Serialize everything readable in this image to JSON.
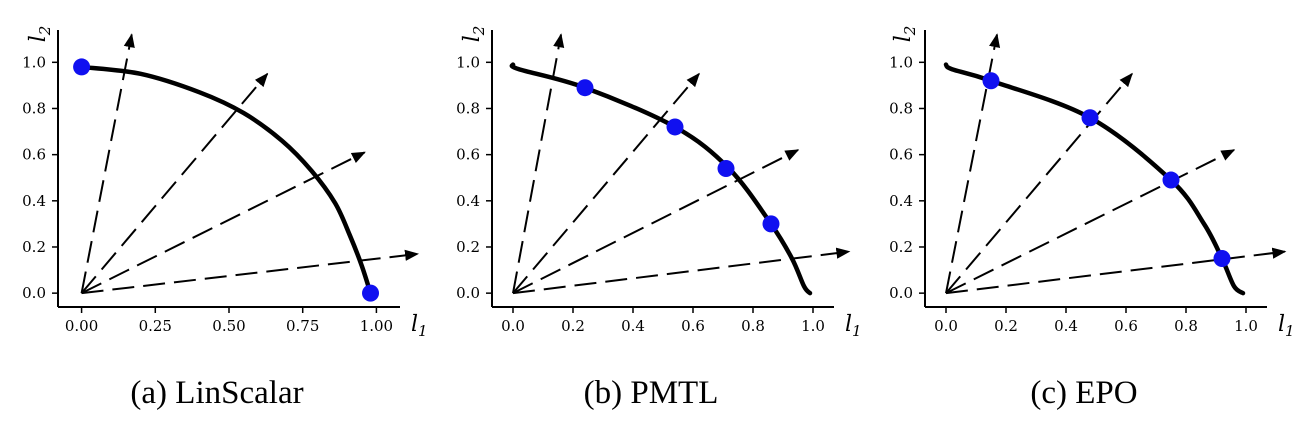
{
  "chart_data": [
    {
      "type": "scatter",
      "caption": "(a) LinScalar",
      "xlabel": "l",
      "xlabel_sub": "1",
      "ylabel": "l",
      "ylabel_sub": "2",
      "xlim": [
        -0.08,
        1.08
      ],
      "ylim": [
        -0.06,
        1.14
      ],
      "xticks": [
        "0.00",
        "0.25",
        "0.50",
        "0.75",
        "1.00"
      ],
      "xtick_values": [
        0,
        0.25,
        0.5,
        0.75,
        1.0
      ],
      "yticks": [
        "0.0",
        "0.2",
        "0.4",
        "0.6",
        "0.8",
        "1.0"
      ],
      "ytick_values": [
        0,
        0.2,
        0.4,
        0.6,
        0.8,
        1.0
      ],
      "pareto_front": {
        "x": [
          0.0,
          0.2,
          0.4,
          0.55,
          0.68,
          0.78,
          0.86,
          0.91,
          0.95,
          0.98
        ],
        "y": [
          0.98,
          0.95,
          0.87,
          0.78,
          0.66,
          0.53,
          0.39,
          0.25,
          0.12,
          0.0
        ]
      },
      "preference_rays": [
        {
          "x": 0.17,
          "y": 1.12
        },
        {
          "x": 0.63,
          "y": 0.95
        },
        {
          "x": 0.96,
          "y": 0.61
        },
        {
          "x": 1.14,
          "y": 0.17
        }
      ],
      "points": {
        "x": [
          0.0,
          0.98
        ],
        "y": [
          0.98,
          0.0
        ]
      },
      "point_color": "#1010f0",
      "grid": false
    },
    {
      "type": "scatter",
      "caption": "(b) PMTL",
      "xlabel": "l",
      "xlabel_sub": "1",
      "ylabel": "l",
      "ylabel_sub": "2",
      "xlim": [
        -0.07,
        1.07
      ],
      "ylim": [
        -0.06,
        1.14
      ],
      "xticks": [
        "0.0",
        "0.2",
        "0.4",
        "0.6",
        "0.8",
        "1.0"
      ],
      "xtick_values": [
        0,
        0.2,
        0.4,
        0.6,
        0.8,
        1.0
      ],
      "yticks": [
        "0.0",
        "0.2",
        "0.4",
        "0.6",
        "0.8",
        "1.0"
      ],
      "ytick_values": [
        0,
        0.2,
        0.4,
        0.6,
        0.8,
        1.0
      ],
      "pareto_front": {
        "x": [
          0.0,
          0.02,
          0.24,
          0.54,
          0.72,
          0.86,
          0.93,
          0.97,
          0.99
        ],
        "y": [
          0.99,
          0.97,
          0.89,
          0.72,
          0.54,
          0.3,
          0.15,
          0.03,
          0.0
        ]
      },
      "preference_rays": [
        {
          "x": 0.16,
          "y": 1.12
        },
        {
          "x": 0.62,
          "y": 0.95
        },
        {
          "x": 0.95,
          "y": 0.62
        },
        {
          "x": 1.12,
          "y": 0.18
        }
      ],
      "points": {
        "x": [
          0.24,
          0.54,
          0.71,
          0.86
        ],
        "y": [
          0.89,
          0.72,
          0.54,
          0.3
        ]
      },
      "point_color": "#1010f0",
      "grid": false
    },
    {
      "type": "scatter",
      "caption": "(c) EPO",
      "xlabel": "l",
      "xlabel_sub": "1",
      "ylabel": "l",
      "ylabel_sub": "2",
      "xlim": [
        -0.07,
        1.07
      ],
      "ylim": [
        -0.06,
        1.14
      ],
      "xticks": [
        "0.0",
        "0.2",
        "0.4",
        "0.6",
        "0.8",
        "1.0"
      ],
      "xtick_values": [
        0,
        0.2,
        0.4,
        0.6,
        0.8,
        1.0
      ],
      "yticks": [
        "0.0",
        "0.2",
        "0.4",
        "0.6",
        "0.8",
        "1.0"
      ],
      "ytick_values": [
        0,
        0.2,
        0.4,
        0.6,
        0.8,
        1.0
      ],
      "pareto_front": {
        "x": [
          0.0,
          0.02,
          0.15,
          0.48,
          0.75,
          0.86,
          0.92,
          0.96,
          0.99
        ],
        "y": [
          0.99,
          0.97,
          0.92,
          0.76,
          0.49,
          0.3,
          0.15,
          0.03,
          0.0
        ]
      },
      "preference_rays": [
        {
          "x": 0.17,
          "y": 1.12
        },
        {
          "x": 0.62,
          "y": 0.95
        },
        {
          "x": 0.96,
          "y": 0.62
        },
        {
          "x": 1.13,
          "y": 0.18
        }
      ],
      "points": {
        "x": [
          0.15,
          0.48,
          0.75,
          0.92
        ],
        "y": [
          0.92,
          0.76,
          0.49,
          0.15
        ]
      },
      "point_color": "#1010f0",
      "grid": false
    }
  ]
}
